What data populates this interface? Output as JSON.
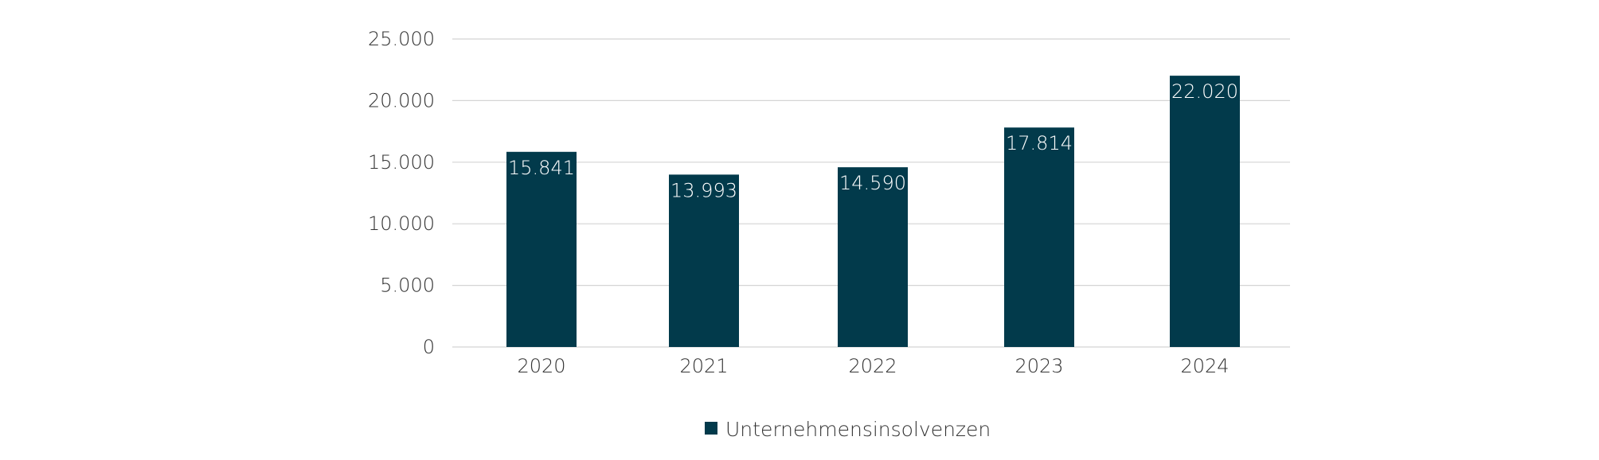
{
  "chart_data": {
    "type": "bar",
    "categories": [
      "2020",
      "2021",
      "2022",
      "2023",
      "2024"
    ],
    "series": [
      {
        "name": "Unternehmensinsolvenzen",
        "values": [
          15841,
          13993,
          14590,
          17814,
          22020
        ]
      }
    ],
    "data_labels": [
      "15.841",
      "13.993",
      "14.590",
      "17.814",
      "22.020"
    ],
    "y_ticks": [
      "0",
      "5.000",
      "10.000",
      "15.000",
      "20.000",
      "25.000"
    ],
    "y_tick_values": [
      0,
      5000,
      10000,
      15000,
      20000,
      25000
    ],
    "ylim": [
      0,
      25000
    ],
    "grid": true,
    "legend": "bottom-center",
    "colors": {
      "bar": "#023a4b",
      "grid": "#d4d4d4",
      "text": "#333333"
    }
  }
}
